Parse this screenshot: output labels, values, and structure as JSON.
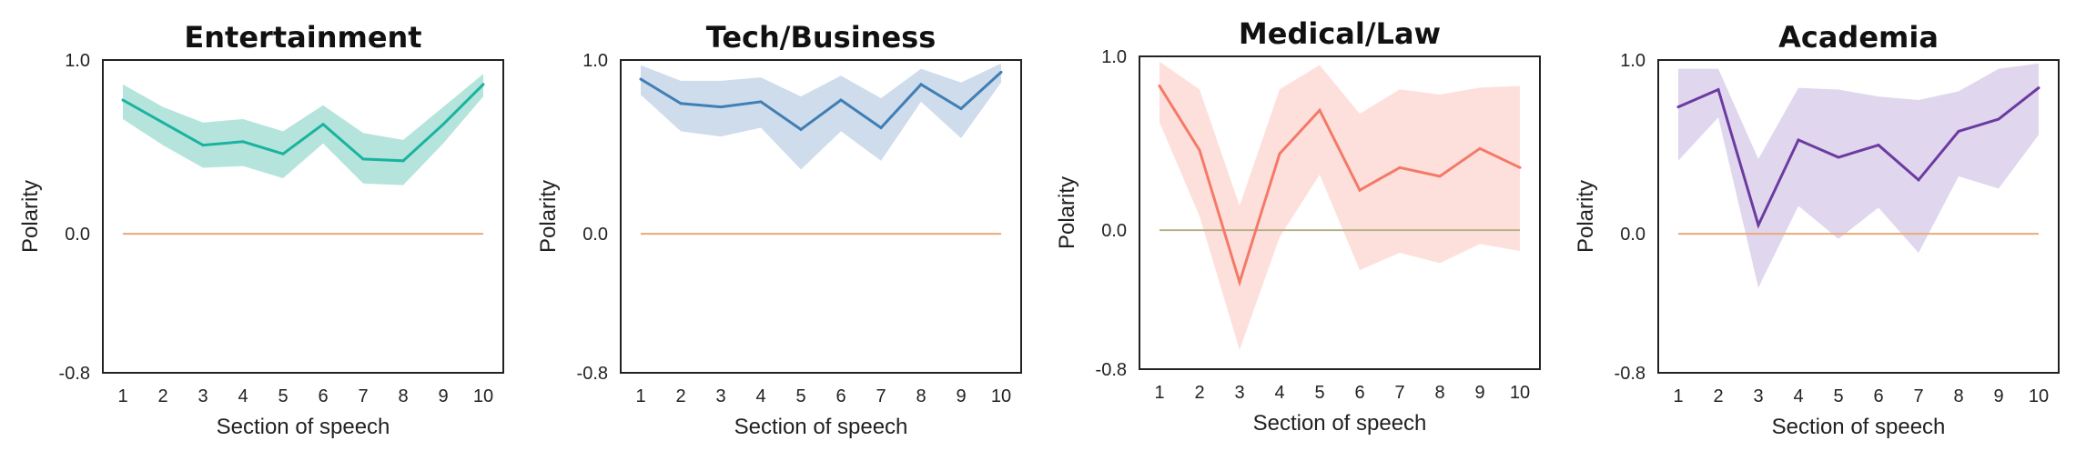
{
  "chart_data": [
    {
      "type": "line",
      "title": "Entertainment",
      "xlabel": "Section of speech",
      "ylabel": "Polarity",
      "x": [
        1,
        2,
        3,
        4,
        5,
        6,
        7,
        8,
        9,
        10
      ],
      "ylim": [
        -0.8,
        1.0
      ],
      "yticks": [
        1.0,
        0.0,
        -0.8
      ],
      "ytick_labels": [
        "1.0",
        "0.0",
        "-0.8"
      ],
      "grid": false,
      "reference_line": 0.0,
      "series": [
        {
          "values": [
            0.77,
            0.64,
            0.51,
            0.53,
            0.46,
            0.63,
            0.43,
            0.42,
            0.63,
            0.86
          ],
          "lower": [
            0.66,
            0.51,
            0.38,
            0.39,
            0.32,
            0.52,
            0.29,
            0.28,
            0.52,
            0.79
          ],
          "upper": [
            0.86,
            0.73,
            0.64,
            0.66,
            0.59,
            0.74,
            0.58,
            0.54,
            0.73,
            0.92
          ]
        }
      ],
      "colors": {
        "line": "#1ab3a0",
        "band": "#b5e4dd",
        "reference": "#e8a97a"
      }
    },
    {
      "type": "line",
      "title": "Tech/Business",
      "xlabel": "Section of speech",
      "ylabel": "Polarity",
      "x": [
        1,
        2,
        3,
        4,
        5,
        6,
        7,
        8,
        9,
        10
      ],
      "ylim": [
        -0.8,
        1.0
      ],
      "yticks": [
        1.0,
        0.0,
        -0.8
      ],
      "ytick_labels": [
        "1.0",
        "0.0",
        "-0.8"
      ],
      "grid": false,
      "reference_line": 0.0,
      "series": [
        {
          "values": [
            0.89,
            0.75,
            0.73,
            0.76,
            0.6,
            0.77,
            0.61,
            0.86,
            0.72,
            0.93
          ],
          "lower": [
            0.8,
            0.59,
            0.56,
            0.61,
            0.37,
            0.59,
            0.42,
            0.76,
            0.55,
            0.87
          ],
          "upper": [
            0.97,
            0.88,
            0.88,
            0.9,
            0.79,
            0.91,
            0.78,
            0.95,
            0.87,
            0.98
          ]
        }
      ],
      "colors": {
        "line": "#3f7fb5",
        "band": "#cfdcec",
        "reference": "#e8a97a"
      }
    },
    {
      "type": "line",
      "title": "Medical/Law",
      "xlabel": "Section of speech",
      "ylabel": "Polarity",
      "x": [
        1,
        2,
        3,
        4,
        5,
        6,
        7,
        8,
        9,
        10
      ],
      "ylim": [
        -0.8,
        1.0
      ],
      "yticks": [
        1.0,
        0.0,
        -0.8
      ],
      "ytick_labels": [
        "1.0",
        "0.0",
        "-0.8"
      ],
      "grid": false,
      "reference_line": 0.0,
      "series": [
        {
          "values": [
            0.83,
            0.46,
            -0.3,
            0.44,
            0.69,
            0.23,
            0.36,
            0.31,
            0.47,
            0.36
          ],
          "lower": [
            0.62,
            0.08,
            -0.69,
            -0.04,
            0.32,
            -0.23,
            -0.13,
            -0.19,
            -0.08,
            -0.12
          ],
          "upper": [
            0.97,
            0.81,
            0.14,
            0.81,
            0.95,
            0.67,
            0.81,
            0.78,
            0.82,
            0.83
          ]
        }
      ],
      "colors": {
        "line": "#f47a68",
        "band": "#fde0dc",
        "reference": "#b9b08a"
      }
    },
    {
      "type": "line",
      "title": "Academia",
      "xlabel": "Section of speech",
      "ylabel": "Polarity",
      "x": [
        1,
        2,
        3,
        4,
        5,
        6,
        7,
        8,
        9,
        10
      ],
      "ylim": [
        -0.8,
        1.0
      ],
      "yticks": [
        1.0,
        0.0,
        -0.8
      ],
      "ytick_labels": [
        "1.0",
        "0.0",
        "-0.8"
      ],
      "grid": false,
      "reference_line": 0.0,
      "series": [
        {
          "values": [
            0.73,
            0.83,
            0.05,
            0.54,
            0.44,
            0.51,
            0.31,
            0.59,
            0.66,
            0.84
          ],
          "lower": [
            0.42,
            0.67,
            -0.31,
            0.16,
            -0.03,
            0.15,
            -0.11,
            0.33,
            0.26,
            0.57
          ],
          "upper": [
            0.95,
            0.95,
            0.43,
            0.84,
            0.83,
            0.79,
            0.77,
            0.82,
            0.95,
            0.98
          ]
        }
      ],
      "colors": {
        "line": "#6c3aa0",
        "band": "#e0d7ee",
        "reference": "#e8a97a"
      }
    }
  ]
}
